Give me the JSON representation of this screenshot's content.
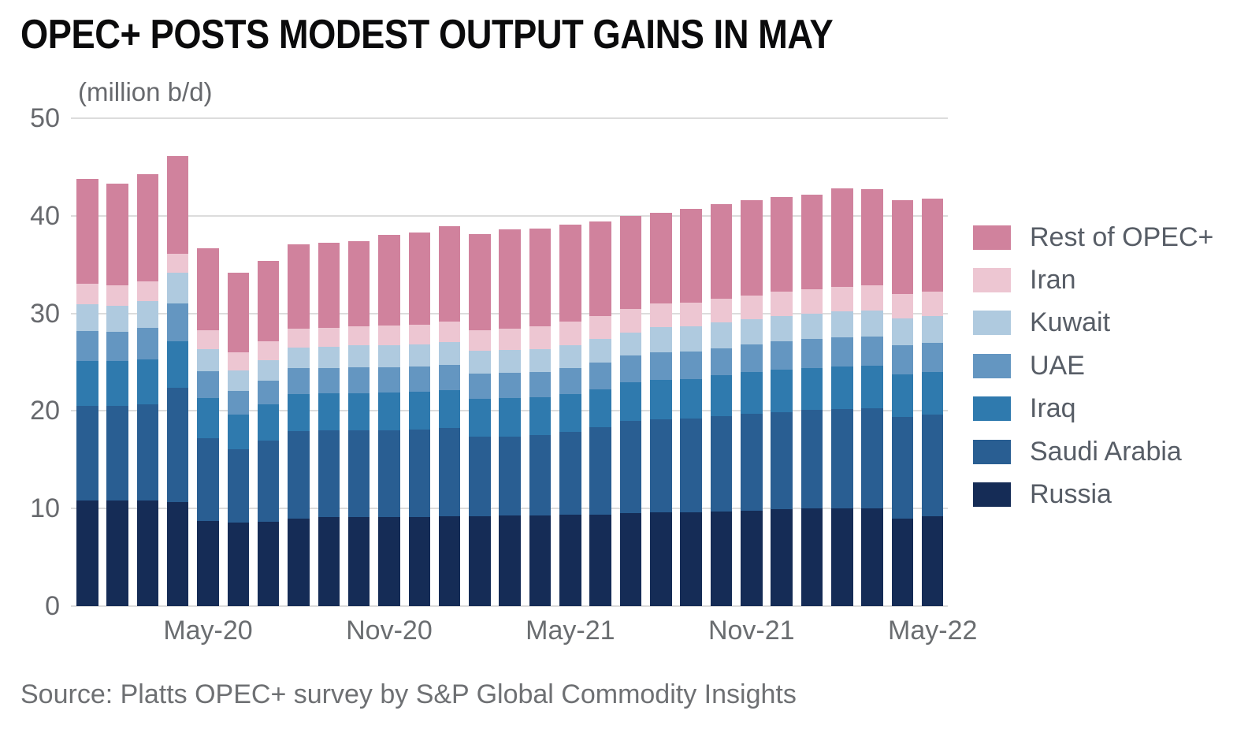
{
  "title": "OPEC+ POSTS MODEST OUTPUT GAINS IN MAY",
  "units_label": "(million b/d)",
  "source": "Source: Platts OPEC+ survey by S&P Global Commodity Insights",
  "colors": {
    "background": "#ffffff",
    "title_text": "#0b0b0c",
    "axis_text": "#67696d",
    "legend_text": "#575d66",
    "source_text": "#6e7073",
    "gridline": "#dcdcdc"
  },
  "chart_data": {
    "type": "bar",
    "stacked": true,
    "title": "OPEC+ POSTS MODEST OUTPUT GAINS IN MAY",
    "ylabel": "(million b/d)",
    "xlabel": "",
    "ylim": [
      0,
      50
    ],
    "yticks": [
      0,
      10,
      20,
      30,
      40,
      50
    ],
    "grid": true,
    "legend_position": "right",
    "categories": [
      "Jan-20",
      "Feb-20",
      "Mar-20",
      "Apr-20",
      "May-20",
      "Jun-20",
      "Jul-20",
      "Aug-20",
      "Sep-20",
      "Oct-20",
      "Nov-20",
      "Dec-20",
      "Jan-21",
      "Feb-21",
      "Mar-21",
      "Apr-21",
      "May-21",
      "Jun-21",
      "Jul-21",
      "Aug-21",
      "Sep-21",
      "Oct-21",
      "Nov-21",
      "Dec-21",
      "Jan-22",
      "Feb-22",
      "Mar-22",
      "Apr-22",
      "May-22"
    ],
    "x_tick_labels": [
      "May-20",
      "Nov-20",
      "May-21",
      "Nov-21",
      "May-22"
    ],
    "x_tick_indices": [
      4,
      10,
      16,
      22,
      28
    ],
    "series": [
      {
        "name": "Russia",
        "color": "#152c56",
        "values": [
          10.8,
          10.8,
          10.8,
          10.7,
          8.7,
          8.6,
          8.6,
          9.0,
          9.1,
          9.1,
          9.1,
          9.1,
          9.2,
          9.2,
          9.25,
          9.3,
          9.35,
          9.4,
          9.5,
          9.6,
          9.6,
          9.7,
          9.8,
          9.9,
          10.0,
          10.0,
          10.0,
          9.0,
          9.2
        ]
      },
      {
        "name": "Saudi Arabia",
        "color": "#295e92",
        "values": [
          9.7,
          9.7,
          9.9,
          11.7,
          8.5,
          7.5,
          8.4,
          8.9,
          8.9,
          8.9,
          8.95,
          9.0,
          9.05,
          8.15,
          8.15,
          8.2,
          8.5,
          8.9,
          9.45,
          9.55,
          9.6,
          9.75,
          9.9,
          10.0,
          10.1,
          10.2,
          10.25,
          10.35,
          10.45
        ]
      },
      {
        "name": "Iraq",
        "color": "#2f7aae",
        "values": [
          4.6,
          4.6,
          4.6,
          4.7,
          4.1,
          3.55,
          3.7,
          3.85,
          3.8,
          3.85,
          3.85,
          3.85,
          3.9,
          3.9,
          3.9,
          3.9,
          3.9,
          3.95,
          4.0,
          4.05,
          4.1,
          4.2,
          4.25,
          4.3,
          4.3,
          4.35,
          4.4,
          4.4,
          4.35
        ]
      },
      {
        "name": "UAE",
        "color": "#6496c1",
        "values": [
          3.1,
          3.0,
          3.2,
          3.9,
          2.8,
          2.4,
          2.4,
          2.65,
          2.6,
          2.6,
          2.6,
          2.6,
          2.6,
          2.6,
          2.6,
          2.6,
          2.65,
          2.7,
          2.7,
          2.8,
          2.8,
          2.8,
          2.85,
          2.9,
          2.95,
          3.0,
          3.0,
          3.0,
          3.0
        ]
      },
      {
        "name": "Kuwait",
        "color": "#afcadf",
        "values": [
          2.7,
          2.7,
          2.8,
          3.2,
          2.25,
          2.1,
          2.1,
          2.1,
          2.2,
          2.25,
          2.25,
          2.3,
          2.3,
          2.3,
          2.35,
          2.35,
          2.35,
          2.4,
          2.4,
          2.6,
          2.6,
          2.6,
          2.6,
          2.6,
          2.6,
          2.65,
          2.65,
          2.7,
          2.7
        ]
      },
      {
        "name": "Iran",
        "color": "#edc6d2",
        "values": [
          2.1,
          2.1,
          2.0,
          1.9,
          1.95,
          1.9,
          1.95,
          1.9,
          1.95,
          2.0,
          2.0,
          2.0,
          2.1,
          2.1,
          2.2,
          2.3,
          2.4,
          2.4,
          2.4,
          2.4,
          2.4,
          2.45,
          2.45,
          2.5,
          2.5,
          2.55,
          2.55,
          2.55,
          2.55
        ]
      },
      {
        "name": "Rest of OPEC+",
        "color": "#d0829d",
        "values": [
          10.8,
          10.4,
          11.0,
          10.0,
          8.4,
          8.15,
          8.25,
          8.7,
          8.65,
          8.7,
          9.3,
          9.45,
          9.75,
          9.85,
          10.15,
          10.05,
          9.95,
          9.65,
          9.55,
          9.3,
          9.6,
          9.7,
          9.75,
          9.7,
          9.75,
          10.05,
          9.85,
          9.6,
          9.55
        ]
      }
    ],
    "legend_top_to_bottom": [
      "Rest of OPEC+",
      "Iran",
      "Kuwait",
      "UAE",
      "Iraq",
      "Saudi Arabia",
      "Russia"
    ]
  }
}
